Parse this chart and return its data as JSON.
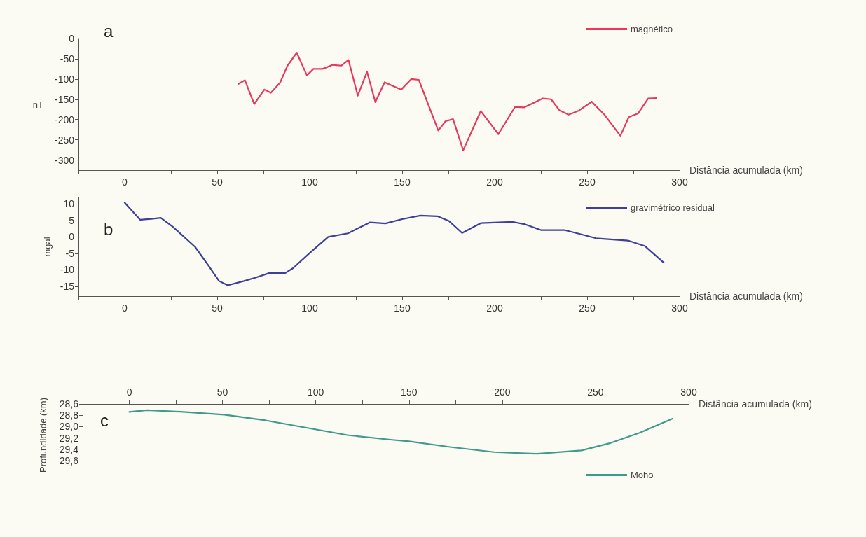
{
  "chart_data": [
    {
      "type": "line",
      "xlabel": "Distância acumulada (km)",
      "ylabel": "nT",
      "annotations": [
        "a"
      ],
      "legend": "top right",
      "marker": "none",
      "grid": false,
      "xlim": [
        -25,
        300
      ],
      "xticks": [
        {
          "value": -25,
          "label": null
        },
        0,
        {
          "value": 25,
          "label": null
        },
        50,
        {
          "value": 75,
          "label": null
        },
        100,
        {
          "value": 125,
          "label": null
        },
        150,
        {
          "value": 175,
          "label": null
        },
        200,
        {
          "value": 225,
          "label": null
        },
        250,
        {
          "value": 275,
          "label": null
        },
        300
      ],
      "ylim": [
        -325,
        0
      ],
      "yticks": [
        -300,
        -250,
        -200,
        -150,
        -100,
        -50,
        0
      ],
      "series": [
        {
          "name": "magnético",
          "color": "#e53a5e",
          "x": [
            61.5,
            65,
            70,
            75.5,
            79,
            84,
            88,
            93,
            98.5,
            102,
            107,
            112.5,
            117,
            121,
            126,
            131,
            135.5,
            140.5,
            149.5,
            155,
            159,
            169.5,
            173.5,
            177.5,
            183,
            192.5,
            202,
            211,
            216,
            226,
            230.5,
            235,
            240,
            245.5,
            252.5,
            259.5,
            268,
            272.5,
            277.5,
            283,
            287.5
          ],
          "values": [
            -112,
            -103,
            -162,
            -126,
            -134,
            -109,
            -67,
            -35,
            -91,
            -75,
            -75,
            -65,
            -67,
            -53,
            -141,
            -82,
            -157,
            -108,
            -126,
            -100,
            -102,
            -227,
            -204,
            -199,
            -276,
            -179,
            -236,
            -169,
            -170,
            -148,
            -150,
            -177,
            -188,
            -178,
            -156,
            -189,
            -240,
            -194,
            -185,
            -148,
            -147
          ]
        }
      ]
    },
    {
      "type": "line",
      "xlabel": "Distância acumulada (km)",
      "ylabel": "mgal",
      "annotations": [
        "b"
      ],
      "legend": "top right",
      "marker": "none",
      "grid": false,
      "xlim": [
        -25,
        300
      ],
      "xticks": [
        {
          "value": -25,
          "label": null
        },
        0,
        {
          "value": 25,
          "label": null
        },
        50,
        {
          "value": 75,
          "label": null
        },
        100,
        {
          "value": 125,
          "label": null
        },
        150,
        {
          "value": 175,
          "label": null
        },
        200,
        {
          "value": 225,
          "label": null
        },
        250,
        {
          "value": 275,
          "label": null
        },
        300
      ],
      "ylim": [
        -18,
        12
      ],
      "yticks": [
        -15,
        -10,
        -5,
        0,
        5,
        10
      ],
      "series": [
        {
          "name": "gravimétrico residual",
          "color": "#3d3f99",
          "x": [
            0,
            8.4,
            14.3,
            19.5,
            26,
            38,
            45.3,
            51,
            55.7,
            64.5,
            70.5,
            78,
            86.7,
            91,
            100,
            110,
            120.7,
            132.5,
            141,
            150,
            159.8,
            169,
            175.4,
            182.4,
            192.5,
            209.5,
            216,
            225,
            237.6,
            244,
            254.8,
            272,
            281.3,
            291.4
          ],
          "values": [
            10.4,
            5.2,
            5.5,
            5.8,
            3.1,
            -3,
            -8.7,
            -13.4,
            -14.7,
            -13.4,
            -12.4,
            -11,
            -11,
            -9.5,
            -4.9,
            0,
            1.1,
            4.4,
            4.1,
            5.4,
            6.5,
            6.3,
            4.8,
            1.2,
            4.2,
            4.6,
            3.9,
            2.1,
            2.1,
            1.2,
            -0.4,
            -1.1,
            -2.8,
            -7.8
          ]
        }
      ]
    },
    {
      "type": "line",
      "xlabel": "Distância acumulada (km)",
      "ylabel": "Profundidade (km)",
      "annotations": [
        "c"
      ],
      "legend": "bottom right",
      "marker": "none",
      "grid": false,
      "xlim": [
        -25,
        300
      ],
      "xticks": [
        {
          "value": -25,
          "label": null
        },
        0,
        {
          "value": 25,
          "label": null
        },
        50,
        {
          "value": 75,
          "label": null
        },
        100,
        {
          "value": 125,
          "label": null
        },
        150,
        {
          "value": 175,
          "label": null
        },
        200,
        {
          "value": 225,
          "label": null
        },
        250,
        {
          "value": 275,
          "label": null
        },
        300
      ],
      "ylim": [
        29.7,
        28.6
      ],
      "yticks": [
        {
          "value": 28.6,
          "label": "28,6"
        },
        {
          "value": 28.8,
          "label": "28,8"
        },
        {
          "value": 29.0,
          "label": "29,0"
        },
        {
          "value": 29.2,
          "label": "29,2"
        },
        {
          "value": 29.4,
          "label": "29,4"
        },
        {
          "value": 29.6,
          "label": "29,6"
        }
      ],
      "series": [
        {
          "name": "Moho",
          "color": "#3f9a8e",
          "x": [
            0,
            9.6,
            28.9,
            51,
            73,
            95,
            117,
            140,
            150,
            172,
            195.6,
            219,
            242.5,
            258,
            273.6,
            291.3
          ],
          "values": [
            28.74,
            28.71,
            28.74,
            28.79,
            28.89,
            29.02,
            29.15,
            29.23,
            29.26,
            29.36,
            29.45,
            29.48,
            29.42,
            29.29,
            29.11,
            28.86
          ]
        }
      ]
    }
  ]
}
